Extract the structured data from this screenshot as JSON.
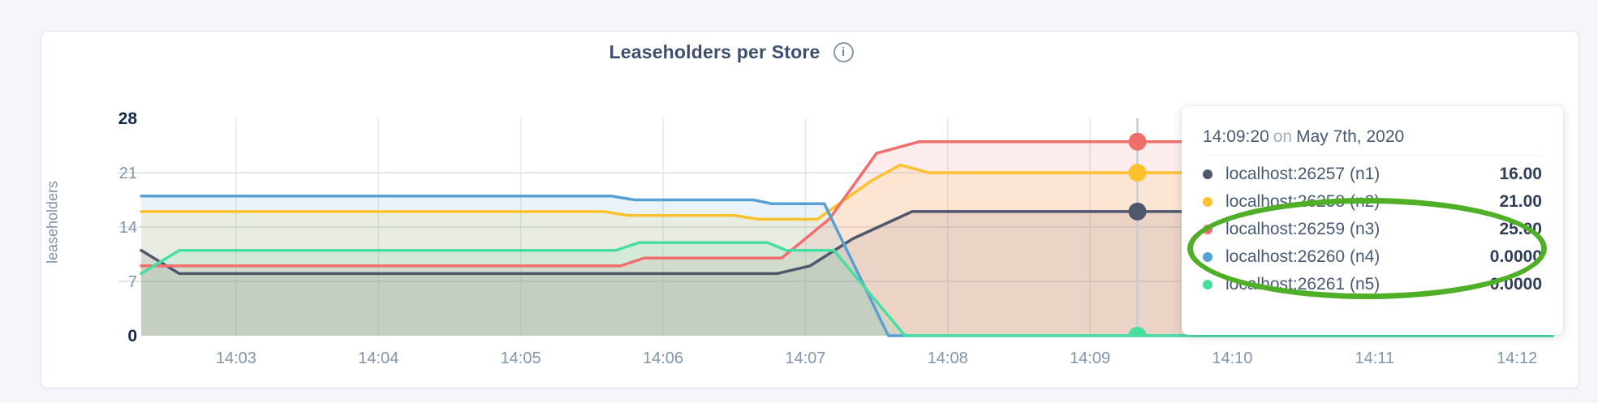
{
  "chart": {
    "title": "Leaseholders per Store",
    "info_icon_glyph": "i"
  },
  "colors": {
    "page_bg": "#f4f6fa",
    "card_bg": "#ffffff",
    "grid": "#e2e7ee",
    "hover_line": "#c7ccd4",
    "axis_text": "#8095ad",
    "axis_text_bold": "#12294b",
    "title_text": "#3e4f6e",
    "annotation": "#4faf27"
  },
  "chart_data": {
    "type": "area",
    "title": "Leaseholders per Store",
    "ylabel": "leaseholders",
    "xlabel": "",
    "ylim": [
      0,
      28
    ],
    "grid": true,
    "x_unit": "seconds after 14:00:00 on May 7th, 2020",
    "x_domain": [
      140,
      735
    ],
    "y_ticks": [
      {
        "v": 0,
        "label": "0",
        "bold": true
      },
      {
        "v": 7,
        "label": "7"
      },
      {
        "v": 14,
        "label": "14"
      },
      {
        "v": 21,
        "label": "21"
      },
      {
        "v": 28,
        "label": "28",
        "bold": true
      }
    ],
    "x_ticks": [
      {
        "t": 180,
        "label": "14:03"
      },
      {
        "t": 240,
        "label": "14:04"
      },
      {
        "t": 300,
        "label": "14:05"
      },
      {
        "t": 360,
        "label": "14:06"
      },
      {
        "t": 420,
        "label": "14:07"
      },
      {
        "t": 480,
        "label": "14:08"
      },
      {
        "t": 540,
        "label": "14:09"
      },
      {
        "t": 600,
        "label": "14:10"
      },
      {
        "t": 660,
        "label": "14:11"
      },
      {
        "t": 720,
        "label": "14:12"
      }
    ],
    "hover": {
      "t": 560,
      "time_label": "14:09:20"
    },
    "series": [
      {
        "name": "localhost:26257 (n1)",
        "color": "#4e576b",
        "hover_value": 16,
        "points": [
          [
            140,
            11
          ],
          [
            156,
            8
          ],
          [
            408,
            8
          ],
          [
            422,
            9
          ],
          [
            440,
            12.5
          ],
          [
            465,
            16
          ],
          [
            735,
            16
          ]
        ]
      },
      {
        "name": "localhost:26258 (n2)",
        "color": "#fdc12e",
        "hover_value": 21,
        "points": [
          [
            140,
            16
          ],
          [
            335,
            16
          ],
          [
            345,
            15.5
          ],
          [
            390,
            15.5
          ],
          [
            400,
            15
          ],
          [
            425,
            15
          ],
          [
            448,
            20
          ],
          [
            460,
            22
          ],
          [
            472,
            21
          ],
          [
            735,
            21
          ]
        ]
      },
      {
        "name": "localhost:26259 (n3)",
        "color": "#f06e6c",
        "hover_value": 25,
        "points": [
          [
            140,
            9
          ],
          [
            342,
            9
          ],
          [
            352,
            10
          ],
          [
            410,
            10
          ],
          [
            430,
            15
          ],
          [
            450,
            23.5
          ],
          [
            468,
            25
          ],
          [
            735,
            25
          ]
        ]
      },
      {
        "name": "localhost:26260 (n4)",
        "color": "#57a0d4",
        "hover_value": 0,
        "points": [
          [
            140,
            18
          ],
          [
            338,
            18
          ],
          [
            348,
            17.5
          ],
          [
            398,
            17.5
          ],
          [
            406,
            17
          ],
          [
            428,
            17
          ],
          [
            455,
            0
          ],
          [
            735,
            0
          ]
        ]
      },
      {
        "name": "localhost:26261 (n5)",
        "color": "#47dfa1",
        "hover_value": 0,
        "points": [
          [
            140,
            8
          ],
          [
            156,
            11
          ],
          [
            340,
            11
          ],
          [
            350,
            12
          ],
          [
            404,
            12
          ],
          [
            412,
            11
          ],
          [
            432,
            11
          ],
          [
            462,
            0
          ],
          [
            735,
            0
          ]
        ]
      }
    ]
  },
  "tooltip": {
    "time": "14:09:20",
    "on_word": "on",
    "date": "May 7th, 2020",
    "rows": [
      {
        "label": "localhost:26257 (n1)",
        "value": "16.00",
        "color": "#4e576b"
      },
      {
        "label": "localhost:26258 (n2)",
        "value": "21.00",
        "color": "#fdc12e"
      },
      {
        "label": "localhost:26259 (n3)",
        "value": "25.00",
        "color": "#f06e6c"
      },
      {
        "label": "localhost:26260 (n4)",
        "value": "0.0000",
        "color": "#57a0d4"
      },
      {
        "label": "localhost:26261 (n5)",
        "value": "0.0000",
        "color": "#47dfa1"
      }
    ]
  }
}
